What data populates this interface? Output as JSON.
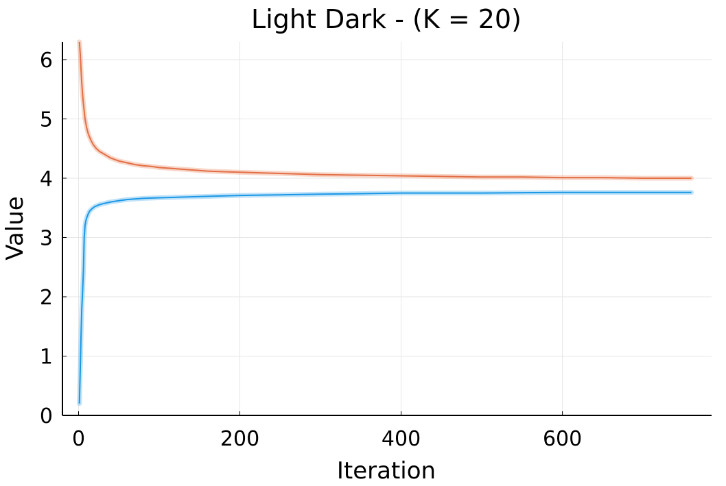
{
  "chart_data": {
    "type": "line",
    "title": "Light Dark - (K = 20)",
    "xlabel": "Iteration",
    "ylabel": "Value",
    "xlim": [
      -20,
      785
    ],
    "ylim": [
      0,
      6.3
    ],
    "xticks": [
      0,
      200,
      400,
      600
    ],
    "yticks": [
      0,
      1,
      2,
      3,
      4,
      5,
      6
    ],
    "grid": true,
    "legend": "none",
    "series": [
      {
        "color": "#e26f46",
        "band_color": "#f2b59a",
        "x": [
          1,
          2,
          3,
          4,
          5,
          6,
          8,
          10,
          12,
          15,
          18,
          22,
          26,
          30,
          35,
          40,
          50,
          60,
          70,
          80,
          90,
          100,
          120,
          140,
          160,
          180,
          200,
          250,
          300,
          350,
          400,
          450,
          500,
          550,
          600,
          650,
          700,
          760
        ],
        "values": [
          6.3,
          6.1,
          5.85,
          5.6,
          5.4,
          5.25,
          5.0,
          4.85,
          4.75,
          4.65,
          4.57,
          4.5,
          4.45,
          4.42,
          4.38,
          4.34,
          4.29,
          4.26,
          4.23,
          4.21,
          4.2,
          4.18,
          4.16,
          4.14,
          4.12,
          4.11,
          4.1,
          4.08,
          4.06,
          4.05,
          4.04,
          4.03,
          4.02,
          4.02,
          4.01,
          4.01,
          4.0,
          4.0
        ]
      },
      {
        "color": "#1a98e6",
        "band_color": "#8ccbf2",
        "x": [
          1,
          2,
          3,
          4,
          5,
          6,
          7,
          8,
          9,
          10,
          12,
          14,
          17,
          20,
          25,
          30,
          40,
          50,
          60,
          80,
          100,
          150,
          200,
          250,
          300,
          350,
          400,
          500,
          600,
          700,
          760
        ],
        "values": [
          0.2,
          0.75,
          1.3,
          1.8,
          2.1,
          2.45,
          3.0,
          3.2,
          3.28,
          3.33,
          3.4,
          3.45,
          3.49,
          3.52,
          3.55,
          3.57,
          3.6,
          3.62,
          3.64,
          3.66,
          3.67,
          3.69,
          3.71,
          3.72,
          3.73,
          3.74,
          3.75,
          3.75,
          3.76,
          3.76,
          3.76
        ]
      }
    ]
  }
}
